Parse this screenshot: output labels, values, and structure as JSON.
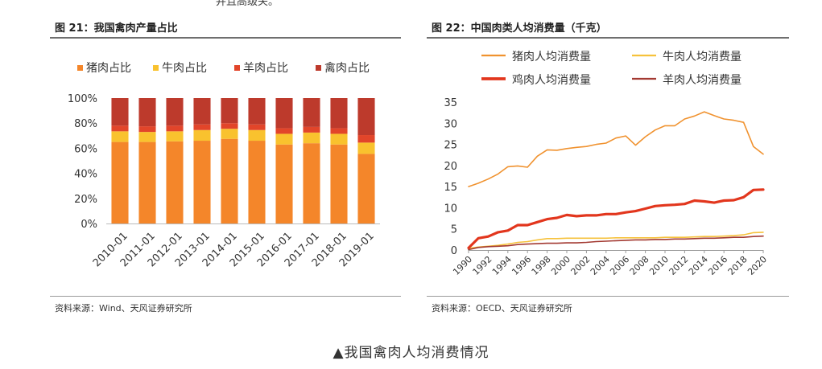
{
  "top_fragment": "并且高级关。",
  "caption": "▲我国禽肉人均消费情况",
  "colors": {
    "pork": "#f4862a",
    "beef": "#f9c22e",
    "mutton": "#e2452a",
    "poultry": "#bd3a2c",
    "pork_line": "#f0922f",
    "beef_line": "#f6c23c",
    "chicken_line": "#e2361d",
    "mutton_line": "#a33a32"
  },
  "left": {
    "title": "图 21：我国禽肉产量占比",
    "source": "资料来源：Wind、天风证券研究所"
  },
  "right": {
    "title": "图 22：中国肉类人均消费量（千克）",
    "source": "资料来源：OECD、天风证券研究所"
  },
  "chart_data": [
    {
      "type": "bar",
      "stacked": true,
      "categories": [
        "2010-01",
        "2011-01",
        "2012-01",
        "2013-01",
        "2014-01",
        "2015-01",
        "2016-01",
        "2017-01",
        "2018-01",
        "2019-01"
      ],
      "series": [
        {
          "name": "猪肉占比",
          "color": "#f4862a",
          "values": [
            65,
            65,
            65.5,
            66,
            67.5,
            66,
            63,
            64,
            63,
            55.5
          ]
        },
        {
          "name": "牛肉占比",
          "color": "#f9c22e",
          "values": [
            8.5,
            8,
            8,
            8.5,
            8,
            8.5,
            8.5,
            8.5,
            8.5,
            9
          ]
        },
        {
          "name": "羊肉占比",
          "color": "#e2452a",
          "values": [
            4.5,
            4.5,
            4.5,
            4.5,
            4.5,
            4.5,
            4.5,
            4.5,
            4.5,
            6
          ]
        },
        {
          "name": "禽肉占比",
          "color": "#bd3a2c",
          "values": [
            22,
            22.5,
            22,
            21,
            20,
            21,
            24,
            23,
            24,
            29.5
          ]
        }
      ],
      "y_ticks": [
        "0%",
        "20%",
        "40%",
        "60%",
        "80%",
        "100%"
      ],
      "ylim": [
        0,
        100
      ],
      "legend": "top"
    },
    {
      "type": "line",
      "x": [
        1990,
        1991,
        1992,
        1993,
        1994,
        1995,
        1996,
        1997,
        1998,
        1999,
        2000,
        2001,
        2002,
        2003,
        2004,
        2005,
        2006,
        2007,
        2008,
        2009,
        2010,
        2011,
        2012,
        2013,
        2014,
        2015,
        2016,
        2017,
        2018,
        2019,
        2020
      ],
      "x_ticks": [
        "1990",
        "1992",
        "1994",
        "1996",
        "1998",
        "2000",
        "2002",
        "2004",
        "2006",
        "2008",
        "2010",
        "2012",
        "2014",
        "2016",
        "2018",
        "2020"
      ],
      "y_ticks": [
        "0",
        "5",
        "10",
        "15",
        "20",
        "25",
        "30",
        "35"
      ],
      "ylim": [
        0,
        35
      ],
      "series": [
        {
          "name": "猪肉人均消费量",
          "color": "#f0922f",
          "width": 1.6,
          "values": [
            15,
            15.8,
            16.8,
            18,
            19.7,
            19.9,
            19.6,
            22.2,
            23.7,
            23.6,
            24,
            24.3,
            24.5,
            25,
            25.3,
            26.5,
            27,
            24.8,
            26.8,
            28.4,
            29.4,
            29.4,
            31,
            31.7,
            32.7,
            31.8,
            31,
            30.7,
            30.2,
            24.5,
            22.7
          ]
        },
        {
          "name": "牛肉人均消费量",
          "color": "#f6c23c",
          "width": 1.6,
          "values": [
            0.4,
            0.7,
            0.9,
            1.1,
            1.4,
            1.8,
            2.0,
            2.4,
            2.7,
            2.7,
            2.8,
            2.8,
            2.8,
            2.8,
            2.8,
            2.9,
            2.9,
            2.9,
            2.9,
            2.9,
            3.0,
            3.0,
            3.0,
            3.1,
            3.2,
            3.2,
            3.3,
            3.4,
            3.6,
            4.1,
            4.2
          ]
        },
        {
          "name": "鸡肉人均消费量",
          "color": "#e2361d",
          "width": 3.2,
          "values": [
            0.5,
            2.8,
            3.2,
            4.2,
            4.6,
            5.9,
            5.9,
            6.6,
            7.3,
            7.6,
            8.3,
            8.0,
            8.2,
            8.2,
            8.5,
            8.5,
            8.9,
            9.2,
            9.8,
            10.4,
            10.6,
            10.7,
            10.9,
            11.7,
            11.5,
            11.2,
            11.7,
            11.8,
            12.5,
            14.2,
            14.3
          ]
        },
        {
          "name": "羊肉人均消费量",
          "color": "#a33a32",
          "width": 1.6,
          "values": [
            0.1,
            0.6,
            0.8,
            0.9,
            1.0,
            1.3,
            1.4,
            1.5,
            1.6,
            1.6,
            1.7,
            1.7,
            1.8,
            2.0,
            2.1,
            2.2,
            2.3,
            2.4,
            2.4,
            2.5,
            2.5,
            2.6,
            2.6,
            2.7,
            2.8,
            2.8,
            2.9,
            3.0,
            3.0,
            3.2,
            3.3
          ]
        }
      ],
      "legend": "top"
    }
  ]
}
